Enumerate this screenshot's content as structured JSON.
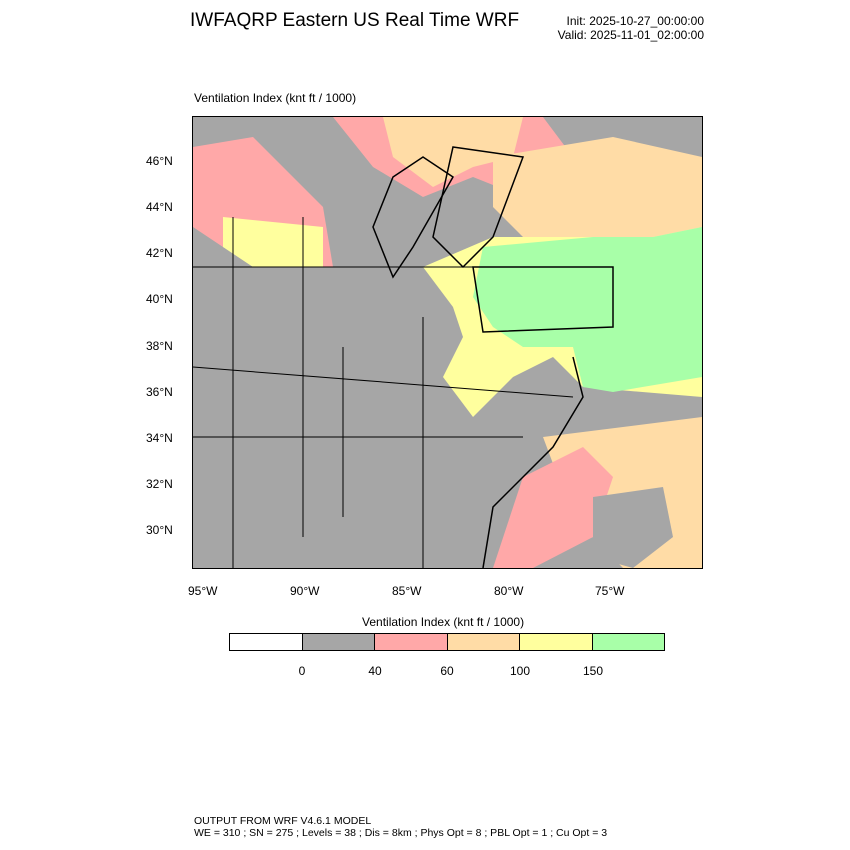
{
  "header": {
    "title": "IWFAQRP Eastern US Real Time WRF",
    "init": "Init: 2025-10-27_00:00:00",
    "valid": "Valid: 2025-11-01_02:00:00"
  },
  "plot": {
    "subtitle": "Ventilation Index   (knt ft / 1000)",
    "lat_labels": [
      "46°N",
      "44°N",
      "42°N",
      "40°N",
      "38°N",
      "36°N",
      "34°N",
      "32°N",
      "30°N"
    ],
    "lon_labels": [
      "95°W",
      "90°W",
      "85°W",
      "80°W",
      "75°W"
    ]
  },
  "legend": {
    "title": "Ventilation Index  (knt ft / 1000)",
    "colors": [
      "#ffffff",
      "#a6a6a6",
      "#ffa8a8",
      "#ffdca6",
      "#ffff9e",
      "#a8ffa8"
    ],
    "labels": [
      "0",
      "40",
      "60",
      "100",
      "150"
    ]
  },
  "footer": {
    "line1": "OUTPUT FROM WRF V4.6.1 MODEL",
    "line2": "WE = 310 ; SN = 275 ; Levels = 38 ; Dis = 8km ; Phys Opt = 8 ; PBL Opt = 1 ; Cu Opt = 3"
  }
}
